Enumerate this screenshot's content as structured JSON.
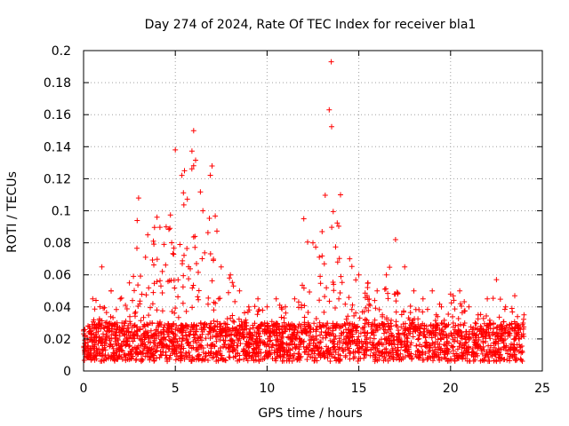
{
  "chart_data": {
    "type": "scatter",
    "title": "Day 274 of 2024, Rate Of TEC Index for receiver bla1",
    "xlabel": "GPS time / hours",
    "ylabel": "ROTI / TECUs",
    "xlim": [
      0,
      25
    ],
    "ylim": [
      0,
      0.2
    ],
    "xticks": [
      0,
      5,
      10,
      15,
      20,
      25
    ],
    "yticks": [
      0,
      0.02,
      0.04,
      0.06,
      0.08,
      0.1,
      0.12,
      0.14,
      0.16,
      0.18,
      0.2
    ],
    "xtick_labels": [
      "0",
      "5",
      "10",
      "15",
      "20",
      "25"
    ],
    "ytick_labels": [
      "0",
      "0.02",
      "0.04",
      "0.06",
      "0.08",
      "0.1",
      "0.12",
      "0.14",
      "0.16",
      "0.18",
      "0.2"
    ],
    "grid": true,
    "marker": "plus",
    "color": "#ff0000",
    "x_range_observed": [
      0,
      24
    ],
    "envelope": {
      "x": [
        0,
        0.5,
        1,
        1.5,
        2,
        2.5,
        3,
        3.5,
        4,
        4.5,
        5,
        5.5,
        6,
        6.5,
        7,
        7.5,
        8,
        8.5,
        9,
        9.5,
        10,
        10.5,
        11,
        11.5,
        12,
        12.5,
        13,
        13.5,
        14,
        14.5,
        15,
        15.5,
        16,
        16.5,
        17,
        17.5,
        18,
        18.5,
        19,
        19.5,
        20,
        20.5,
        21,
        21.5,
        22,
        22.5,
        23,
        23.5,
        24
      ],
      "y_max": [
        0.025,
        0.045,
        0.065,
        0.05,
        0.045,
        0.055,
        0.108,
        0.085,
        0.096,
        0.09,
        0.138,
        0.125,
        0.15,
        0.1,
        0.128,
        0.065,
        0.06,
        0.05,
        0.04,
        0.045,
        0.04,
        0.045,
        0.04,
        0.045,
        0.095,
        0.08,
        0.087,
        0.193,
        0.11,
        0.07,
        0.06,
        0.055,
        0.05,
        0.06,
        0.082,
        0.065,
        0.05,
        0.045,
        0.05,
        0.04,
        0.048,
        0.05,
        0.04,
        0.035,
        0.045,
        0.057,
        0.04,
        0.047,
        0.035
      ]
    }
  }
}
